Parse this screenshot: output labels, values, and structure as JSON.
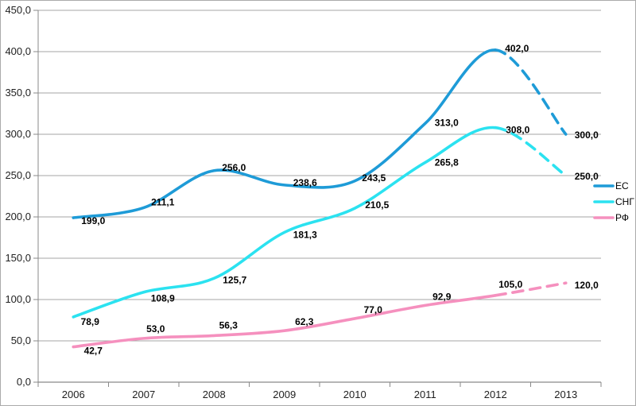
{
  "chart_data": {
    "type": "line",
    "title": "",
    "smooth": true,
    "grid": true,
    "categories": [
      "2006",
      "2007",
      "2008",
      "2009",
      "2010",
      "2011",
      "2012",
      "2013"
    ],
    "y_axis": {
      "min": 0,
      "max": 450,
      "step": 50,
      "tick_labels": [
        "0,0",
        "50,0",
        "100,0",
        "150,0",
        "200,0",
        "250,0",
        "300,0",
        "350,0",
        "400,0",
        "450,0"
      ]
    },
    "legend": {
      "position": "right",
      "entries": [
        "ЕС",
        "СНГ",
        "РФ"
      ]
    },
    "series": [
      {
        "name": "ЕС",
        "color": "#1E9BD7",
        "values": [
          199.0,
          211.1,
          256.0,
          238.6,
          243.5,
          313.0,
          402.0,
          300.0
        ],
        "labels": [
          "199,0",
          "211,1",
          "256,0",
          "238,6",
          "243,5",
          "313,0",
          "402,0",
          "300,0"
        ],
        "solid_until_index": 6,
        "dashed_tail": true
      },
      {
        "name": "СНГ",
        "color": "#2BE2F0",
        "values": [
          78.9,
          108.9,
          125.7,
          181.3,
          210.5,
          265.8,
          308.0,
          250.0
        ],
        "labels": [
          "78,9",
          "108,9",
          "125,7",
          "181,3",
          "210,5",
          "265,8",
          "308,0",
          "250,0"
        ],
        "solid_until_index": 6,
        "dashed_tail": true
      },
      {
        "name": "РФ",
        "color": "#F590BE",
        "values": [
          42.7,
          53.0,
          56.3,
          62.3,
          77.0,
          92.9,
          105.0,
          120.0
        ],
        "labels": [
          "42,7",
          "53,0",
          "56,3",
          "62,3",
          "77,0",
          "92,9",
          "105,0",
          "120,0"
        ],
        "solid_until_index": 6,
        "dashed_tail": true
      }
    ],
    "colors": {
      "gridline": "#A6A6A6",
      "axis": "#898989",
      "tick_text": "#1F1F1F",
      "data_label": "#000000",
      "frame_border": "#ABABAB",
      "background": "#FFFFFF"
    }
  }
}
